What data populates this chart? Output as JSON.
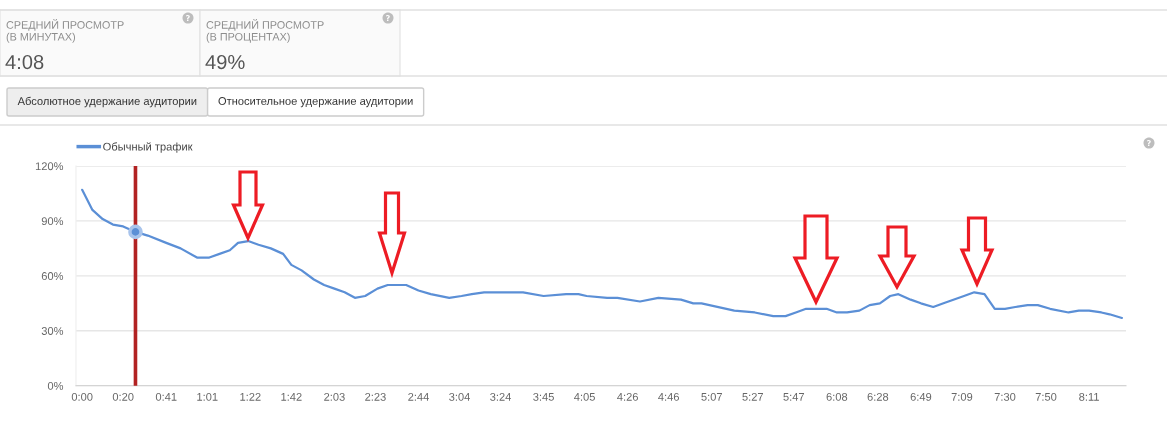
{
  "chart_data": [
    {
      "type": "other",
      "title": "СРЕДНИЙ ПРОСМОТР (В МИНУТАХ)",
      "annotations": [
        "4:08"
      ]
    },
    {
      "type": "other",
      "title": "СРЕДНИЙ ПРОСМОТР (В ПРОЦЕНТАХ)",
      "annotations": [
        "49%"
      ]
    },
    {
      "type": "other",
      "annotations": [
        "Абсолютное удержание аудитории",
        "Относительное удержание аудитории"
      ]
    },
    {
      "type": "line",
      "series": [
        {
          "name": "Обычный трафик",
          "type": "line",
          "color": "#5b8fd6",
          "x": [
            0,
            5,
            10,
            15,
            20,
            26,
            32,
            41,
            48,
            56,
            62,
            67,
            72,
            76,
            81,
            86,
            92,
            98,
            102,
            107,
            113,
            118,
            123,
            128,
            133,
            138,
            144,
            149,
            158,
            164,
            170,
            179,
            185,
            190,
            196,
            204,
            215,
            225,
            236,
            242,
            246,
            256,
            261,
            272,
            281,
            292,
            298,
            302,
            318,
            328,
            337,
            343,
            348,
            353,
            363,
            368,
            373,
            379,
            384,
            389,
            394,
            398,
            404,
            409,
            415,
            420,
            430,
            435,
            440,
            445,
            450,
            455,
            461,
            466,
            472,
            481,
            486,
            491,
            497,
            501,
            507
          ],
          "values": [
            107,
            96,
            91,
            88,
            87,
            84,
            82,
            78,
            75,
            70,
            70,
            72,
            74,
            78,
            79,
            77,
            75,
            72,
            66,
            63,
            58,
            55,
            53,
            51,
            48,
            49,
            53,
            55,
            55,
            52,
            50,
            48,
            49,
            50,
            51,
            51,
            51,
            49,
            50,
            50,
            49,
            48,
            48,
            46,
            48,
            47,
            45,
            45,
            41,
            40,
            38,
            38,
            40,
            42,
            42,
            40,
            40,
            41,
            44,
            45,
            49,
            50,
            47,
            45,
            43,
            45,
            49,
            51,
            50,
            42,
            42,
            43,
            44,
            44,
            42,
            40,
            41,
            41,
            40,
            39,
            37
          ]
        },
        {
          "type": "scatter",
          "marker": "circle",
          "color": "#5b8fd6",
          "x": [
            26
          ],
          "values": [
            84
          ]
        }
      ],
      "xlim": [
        -3,
        509
      ],
      "xticks": [
        {
          "value": 0,
          "label": "0:00"
        },
        {
          "value": 20,
          "label": "0:20"
        },
        {
          "value": 41,
          "label": "0:41"
        },
        {
          "value": 61,
          "label": "1:01"
        },
        {
          "value": 82,
          "label": "1:22"
        },
        {
          "value": 102,
          "label": "1:42"
        },
        {
          "value": 123,
          "label": "2:03"
        },
        {
          "value": 143,
          "label": "2:23"
        },
        {
          "value": 164,
          "label": "2:44"
        },
        {
          "value": 184,
          "label": "3:04"
        },
        {
          "value": 204,
          "label": "3:24"
        },
        {
          "value": 225,
          "label": "3:45"
        },
        {
          "value": 245,
          "label": "4:05"
        },
        {
          "value": 266,
          "label": "4:26"
        },
        {
          "value": 286,
          "label": "4:46"
        },
        {
          "value": 307,
          "label": "5:07"
        },
        {
          "value": 327,
          "label": "5:27"
        },
        {
          "value": 347,
          "label": "5:47"
        },
        {
          "value": 368,
          "label": "6:08"
        },
        {
          "value": 388,
          "label": "6:28"
        },
        {
          "value": 409,
          "label": "6:49"
        },
        {
          "value": 429,
          "label": "7:09"
        },
        {
          "value": 450,
          "label": "7:30"
        },
        {
          "value": 470,
          "label": "7:50"
        },
        {
          "value": 491,
          "label": "8:11"
        }
      ],
      "ylim": [
        0,
        120
      ],
      "yticks": [
        {
          "value": 0,
          "label": "0%"
        },
        {
          "value": 30,
          "label": "30%"
        },
        {
          "value": 60,
          "label": "60%"
        },
        {
          "value": 90,
          "label": "90%"
        },
        {
          "value": 120,
          "label": "120%"
        }
      ],
      "grid": "y",
      "legend": "top left",
      "marker": "none",
      "line_style": "solid",
      "ref_lines": [
        {
          "axis": "x",
          "value": 26,
          "color": "#b22222"
        }
      ]
    }
  ]
}
